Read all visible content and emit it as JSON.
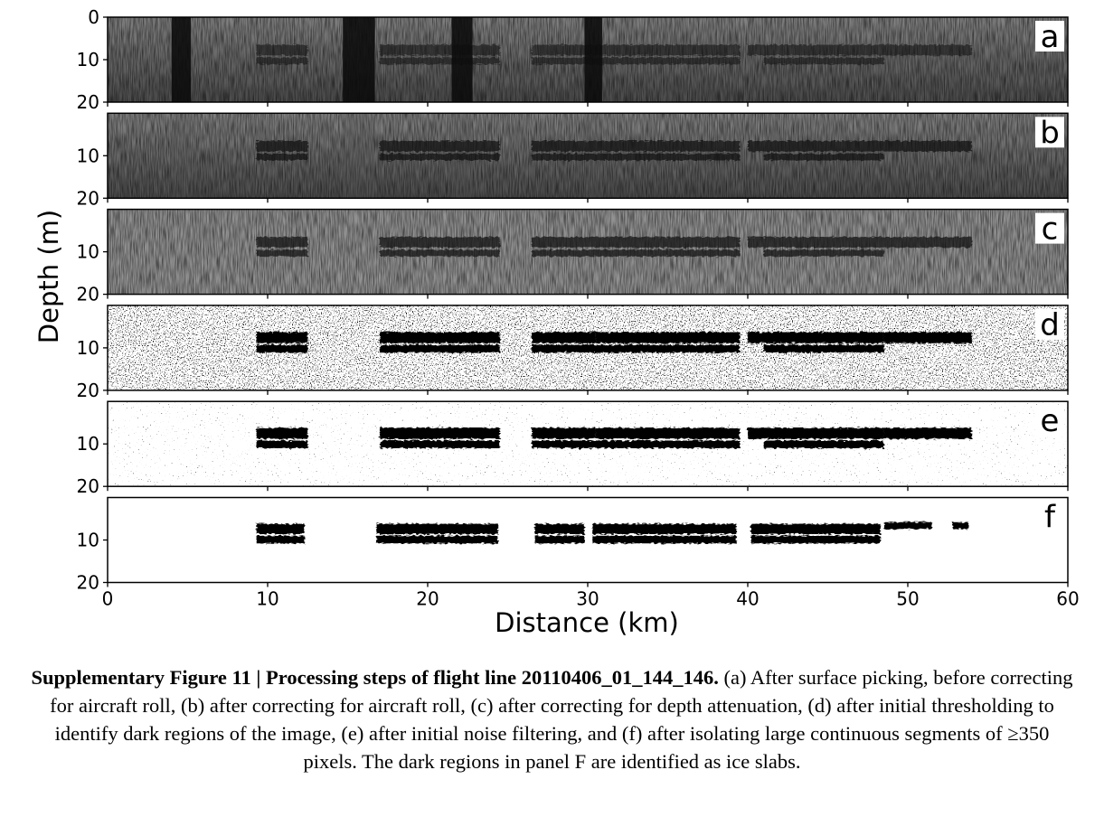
{
  "figure": {
    "panels": [
      {
        "letter": "a",
        "style": "raw"
      },
      {
        "letter": "b",
        "style": "roll_corrected"
      },
      {
        "letter": "c",
        "style": "attenuation_corrected"
      },
      {
        "letter": "d",
        "style": "thresholded"
      },
      {
        "letter": "e",
        "style": "noise_filtered"
      },
      {
        "letter": "f",
        "style": "segments_isolated"
      }
    ],
    "y_ticks": [
      "0",
      "10",
      "20"
    ],
    "x_ticks": [
      "0",
      "10",
      "20",
      "30",
      "40",
      "50",
      "60"
    ],
    "xlabel": "Distance (km)",
    "ylabel": "Depth (m)"
  },
  "caption": {
    "bold": "Supplementary Figure 11 | Processing steps of flight line 20110406_01_144_146.",
    "text": " (a) After surface picking, before correcting for aircraft roll, (b) after correcting for aircraft roll, (c) after correcting for depth attenuation, (d) after initial thresholding to identify dark regions of the image, (e) after initial noise filtering, and (f) after isolating large continuous segments of ≥350 pixels. The dark regions in panel F are identified as ice slabs."
  }
}
